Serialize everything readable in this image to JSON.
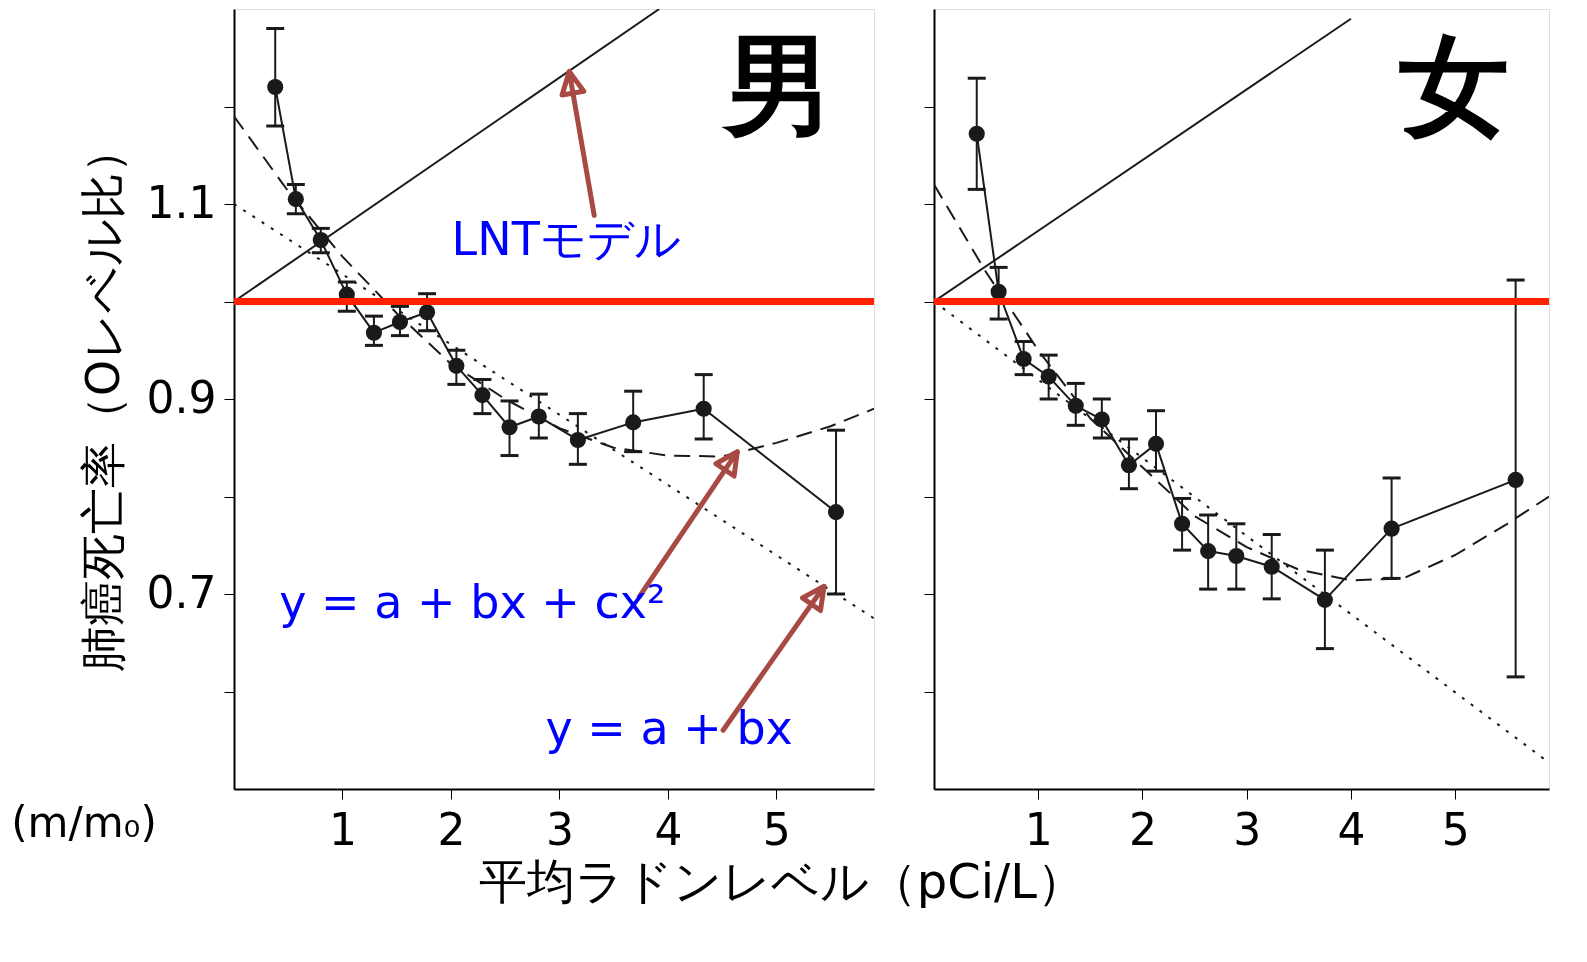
{
  "chart_data": [
    {
      "type": "line",
      "title": "男",
      "xlabel": "平均ラドンレベル（pCi/L）",
      "ylabel": "肺癌死亡率（Oレベル比）",
      "xlim": [
        0,
        5.9
      ],
      "ylim": [
        0.5,
        1.3
      ],
      "xticks": [
        1,
        2,
        3,
        4,
        5
      ],
      "yticks": [
        {
          "value": 0.6,
          "label": null
        },
        0.7,
        {
          "value": 0.8,
          "label": null
        },
        0.9,
        {
          "value": 1.0,
          "label": null
        },
        1.1,
        {
          "value": 1.2,
          "label": null
        }
      ],
      "ref_lines": [
        {
          "axis": "y",
          "value": 1.0,
          "color": "#ff2200"
        }
      ],
      "annotations": [
        {
          "text": "LNTモデル",
          "x": 3.09,
          "y": 1.236
        },
        {
          "text": "y = a + bx + cx²",
          "x": 4.64,
          "y": 0.846
        },
        {
          "text": "y = a + bx",
          "x": 5.44,
          "y": 0.708
        },
        "(m/m₀)"
      ],
      "series": [
        {
          "color": "#1a1a1a",
          "marker": "circle",
          "line_style": "solid",
          "x": [
            0.38,
            0.57,
            0.8,
            1.04,
            1.29,
            1.53,
            1.78,
            2.05,
            2.29,
            2.54,
            2.81,
            3.17,
            3.68,
            4.33,
            5.55
          ],
          "values": [
            1.22,
            1.105,
            1.063,
            1.007,
            0.968,
            0.979,
            0.989,
            0.934,
            0.904,
            0.871,
            0.882,
            0.858,
            0.876,
            0.89,
            0.784
          ],
          "errors": [
            [
              1.18,
              1.28
            ],
            [
              1.09,
              1.12
            ],
            [
              1.05,
              1.075
            ],
            [
              0.99,
              1.02
            ],
            [
              0.955,
              0.985
            ],
            [
              0.965,
              0.995
            ],
            [
              0.97,
              1.008
            ],
            [
              0.915,
              0.95
            ],
            [
              0.885,
              0.92
            ],
            [
              0.842,
              0.898
            ],
            [
              0.86,
              0.905
            ],
            [
              0.833,
              0.885
            ],
            [
              0.846,
              0.908
            ],
            [
              0.859,
              0.925
            ],
            [
              0.7,
              0.868
            ]
          ]
        },
        {
          "color": "#1a1a1a",
          "marker": "none",
          "line_style": "solid",
          "x": [
            0,
            3.92
          ],
          "values": [
            1.0,
            1.3
          ]
        },
        {
          "color": "#1a1a1a",
          "marker": "none",
          "line_style": "dashed",
          "x": [
            0,
            0.5,
            1,
            1.5,
            2,
            2.5,
            3,
            3.5,
            4,
            4.5,
            5,
            5.5,
            5.9
          ],
          "values": [
            1.19,
            1.113,
            1.046,
            0.988,
            0.936,
            0.9,
            0.87,
            0.85,
            0.842,
            0.841,
            0.855,
            0.872,
            0.89
          ]
        },
        {
          "color": "#1a1a1a",
          "marker": "none",
          "line_style": "dotted",
          "x": [
            0,
            5.9
          ],
          "values": [
            1.1,
            0.675
          ]
        }
      ]
    },
    {
      "type": "line",
      "title": "女",
      "xlim": [
        0,
        5.9
      ],
      "ylim": [
        0.5,
        1.3
      ],
      "xticks": [
        1,
        2,
        3,
        4,
        5
      ],
      "yticks": [
        {
          "value": 0.6,
          "label": null
        },
        0.7,
        {
          "value": 0.8,
          "label": null
        },
        0.9,
        {
          "value": 1.0,
          "label": null
        },
        1.1,
        {
          "value": 1.2,
          "label": null
        }
      ],
      "tick_labels": "x",
      "ref_lines": [
        {
          "axis": "y",
          "value": 1.0,
          "color": "#ff2200"
        }
      ],
      "series": [
        {
          "color": "#1a1a1a",
          "marker": "circle",
          "line_style": "solid",
          "x": [
            0.41,
            0.62,
            0.86,
            1.1,
            1.36,
            1.61,
            1.87,
            2.13,
            2.38,
            2.63,
            2.9,
            3.24,
            3.75,
            4.39,
            5.58
          ],
          "values": [
            1.172,
            1.01,
            0.941,
            0.923,
            0.893,
            0.879,
            0.832,
            0.854,
            0.772,
            0.744,
            0.739,
            0.728,
            0.694,
            0.767,
            0.817
          ],
          "errors": [
            [
              1.115,
              1.229
            ],
            [
              0.982,
              1.035
            ],
            [
              0.925,
              0.959
            ],
            [
              0.9,
              0.945
            ],
            [
              0.873,
              0.916
            ],
            [
              0.86,
              0.9
            ],
            [
              0.808,
              0.859
            ],
            [
              0.826,
              0.888
            ],
            [
              0.745,
              0.798
            ],
            [
              0.705,
              0.781
            ],
            [
              0.705,
              0.772
            ],
            [
              0.695,
              0.761
            ],
            [
              0.644,
              0.745
            ],
            [
              0.716,
              0.819
            ],
            [
              0.615,
              1.022
            ]
          ]
        },
        {
          "color": "#1a1a1a",
          "marker": "none",
          "line_style": "solid",
          "x": [
            0,
            4.0
          ],
          "values": [
            1.0,
            1.29
          ]
        },
        {
          "color": "#1a1a1a",
          "marker": "none",
          "line_style": "dashed",
          "x": [
            0,
            0.5,
            1,
            1.5,
            2,
            2.5,
            3,
            3.5,
            4,
            4.5,
            5,
            5.5,
            5.9
          ],
          "values": [
            1.12,
            1.03,
            0.95,
            0.88,
            0.83,
            0.78,
            0.748,
            0.725,
            0.714,
            0.716,
            0.74,
            0.772,
            0.8
          ]
        },
        {
          "color": "#1a1a1a",
          "marker": "none",
          "line_style": "dotted",
          "x": [
            0,
            5.9
          ],
          "values": [
            1.0,
            0.527
          ]
        }
      ]
    }
  ]
}
